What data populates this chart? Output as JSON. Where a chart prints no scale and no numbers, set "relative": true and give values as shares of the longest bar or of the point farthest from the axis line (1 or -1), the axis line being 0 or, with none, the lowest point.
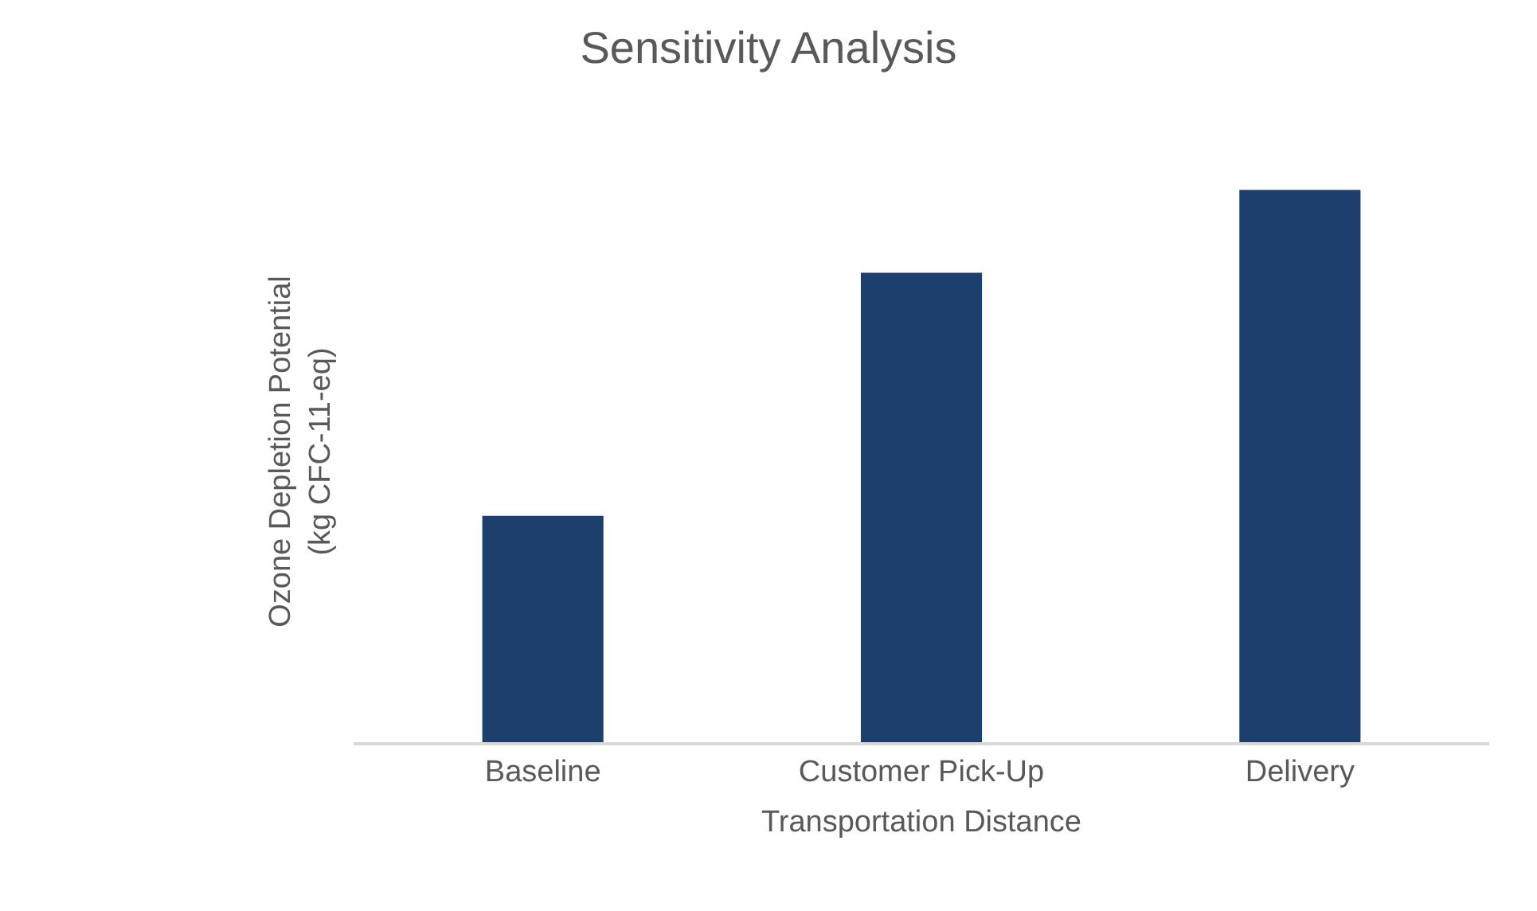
{
  "chart_data": {
    "type": "bar",
    "title": "Sensitivity Analysis",
    "xlabel": "Transportation Distance",
    "ylabel": "Ozone Depletion Potential (kg CFC-11-eq)",
    "categories": [
      "Baseline",
      "Customer Pick-Up",
      "Delivery"
    ],
    "values": [
      0.41,
      0.85,
      1
    ],
    "color": "#1d3f6e",
    "relative": true
  }
}
